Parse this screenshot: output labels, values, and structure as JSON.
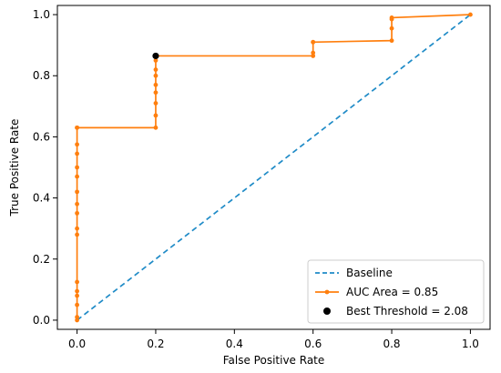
{
  "chart_data": {
    "type": "line",
    "title": "",
    "xlabel": "False Positive Rate",
    "ylabel": "True Positive Rate",
    "xlim": [
      -0.05,
      1.05
    ],
    "ylim": [
      -0.03,
      1.03
    ],
    "xticks": [
      0.0,
      0.2,
      0.4,
      0.6,
      0.8,
      1.0
    ],
    "xtick_labels": [
      "0.0",
      "0.2",
      "0.4",
      "0.6",
      "0.8",
      "1.0"
    ],
    "yticks": [
      0.0,
      0.2,
      0.4,
      0.6,
      0.8,
      1.0
    ],
    "ytick_labels": [
      "0.0",
      "0.2",
      "0.4",
      "0.6",
      "0.8",
      "1.0"
    ],
    "grid": false,
    "legend_position": "lower-right",
    "series": [
      {
        "name": "Baseline",
        "style": "dashed",
        "color": "#1f8bc7",
        "x": [
          0.0,
          1.0
        ],
        "y": [
          0.0,
          1.0
        ]
      },
      {
        "name": "AUC Area = 0.85",
        "style": "solid-with-markers",
        "color": "#ff7f0e",
        "x": [
          0.0,
          0.0,
          0.0,
          0.0,
          0.0,
          0.0,
          0.0,
          0.0,
          0.0,
          0.0,
          0.0,
          0.0,
          0.0,
          0.0,
          0.0,
          0.0,
          0.0,
          0.2,
          0.2,
          0.2,
          0.2,
          0.2,
          0.2,
          0.2,
          0.2,
          0.2,
          0.2,
          0.6,
          0.6,
          0.6,
          0.6,
          0.8,
          0.8,
          0.8,
          0.8,
          1.0
        ],
        "y": [
          0.0,
          0.01,
          0.05,
          0.08,
          0.095,
          0.125,
          0.28,
          0.3,
          0.35,
          0.38,
          0.42,
          0.47,
          0.5,
          0.545,
          0.575,
          0.63,
          0.63,
          0.63,
          0.67,
          0.71,
          0.745,
          0.77,
          0.8,
          0.82,
          0.85,
          0.865,
          0.865,
          0.865,
          0.875,
          0.91,
          0.91,
          0.915,
          0.955,
          0.985,
          0.99,
          1.0
        ]
      }
    ],
    "best_threshold": {
      "name": "Best Threshold = 2.08",
      "color": "#000000",
      "x": 0.2,
      "y": 0.865
    },
    "legend": [
      "Baseline",
      "AUC Area = 0.85",
      "Best Threshold = 2.08"
    ]
  }
}
